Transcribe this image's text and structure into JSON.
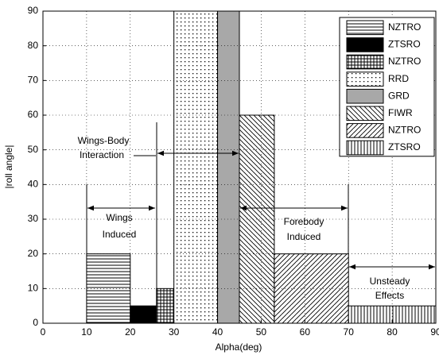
{
  "chart_data": {
    "type": "range-bar",
    "x_label": "Alpha(deg)",
    "y_label": "|roll angle|",
    "xlim": [
      0,
      90
    ],
    "xticks": [
      0,
      10,
      20,
      30,
      40,
      50,
      60,
      70,
      80,
      90
    ],
    "ylim": [
      0,
      90
    ],
    "yticks": [
      0,
      10,
      20,
      30,
      40,
      50,
      60,
      70,
      80,
      90
    ],
    "grid": true,
    "legend": "upper right",
    "bars": [
      {
        "name": "NZTRO",
        "x0": 10,
        "x1": 20,
        "value": 20,
        "pattern": "hlines"
      },
      {
        "name": "ZTSRO",
        "x0": 20,
        "x1": 26,
        "value": 5,
        "pattern": "black"
      },
      {
        "name": "NZTRO",
        "x0": 26,
        "x1": 30,
        "value": 10,
        "pattern": "squares"
      },
      {
        "name": "RRD",
        "x0": 30,
        "x1": 40,
        "value": 90,
        "pattern": "dots"
      },
      {
        "name": "GRD",
        "x0": 40,
        "x1": 45,
        "value": 90,
        "pattern": "gray"
      },
      {
        "name": "FIWR",
        "x0": 45,
        "x1": 53,
        "value": 60,
        "pattern": "backslash"
      },
      {
        "name": "NZTRO",
        "x0": 53,
        "x1": 70,
        "value": 20,
        "pattern": "slash"
      },
      {
        "name": "ZTSRO",
        "x0": 70,
        "x1": 90,
        "value": 5,
        "pattern": "vlines"
      }
    ],
    "annotations": [
      "Wings-Body",
      "Interaction",
      "Wings",
      "Induced",
      "Forebody",
      "Induced",
      "Unsteady",
      "Effects"
    ]
  }
}
